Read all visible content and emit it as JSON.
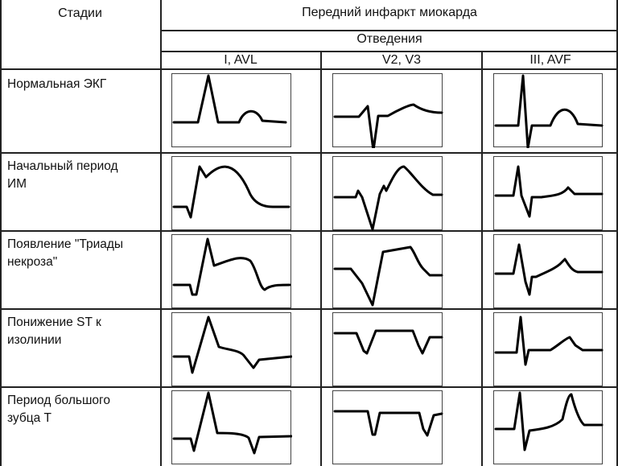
{
  "header": {
    "stages_label": "Стадии",
    "title": "Передний инфаркт миокарда",
    "leads_label": "Отведения",
    "leads": [
      "I, AVL",
      "V2, V3",
      "III, AVF"
    ]
  },
  "stages": [
    {
      "label": "Нормальная ЭКГ"
    },
    {
      "label": "Начальный период\nИМ"
    },
    {
      "label": "Появление \"Триады\nнекроза\""
    },
    {
      "label": "Понижение ST к\nизолинии"
    },
    {
      "label": "Период большого\nзубца T"
    }
  ],
  "colors": {
    "line": "#222222",
    "trace": "#000000",
    "background": "#ffffff"
  }
}
